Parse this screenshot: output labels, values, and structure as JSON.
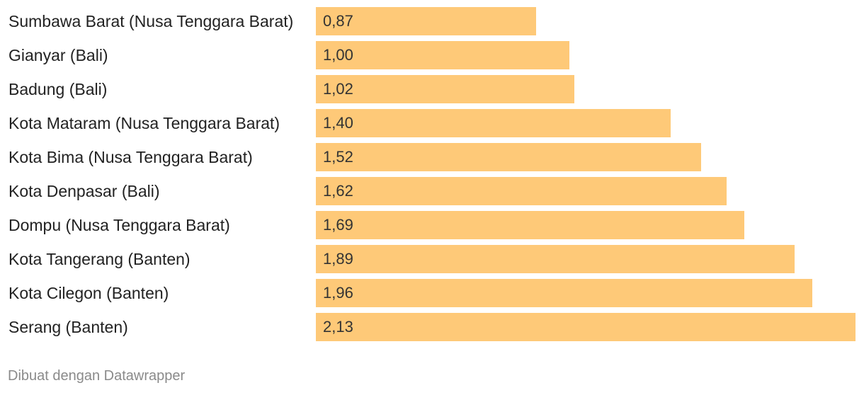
{
  "chart_data": {
    "type": "bar",
    "orientation": "horizontal",
    "categories": [
      "Sumbawa Barat (Nusa Tenggara Barat)",
      "Gianyar (Bali)",
      "Badung (Bali)",
      "Kota Mataram (Nusa Tenggara Barat)",
      "Kota Bima (Nusa Tenggara Barat)",
      "Kota Denpasar (Bali)",
      "Dompu (Nusa Tenggara Barat)",
      "Kota Tangerang (Banten)",
      "Kota Cilegon (Banten)",
      "Serang (Banten)"
    ],
    "values": [
      0.87,
      1.0,
      1.02,
      1.4,
      1.52,
      1.62,
      1.69,
      1.89,
      1.96,
      2.13
    ],
    "value_labels": [
      "0,87",
      "1,00",
      "1,02",
      "1,40",
      "1,52",
      "1,62",
      "1,69",
      "1,89",
      "1,96",
      "2,13"
    ],
    "xlim": [
      0,
      2.13
    ],
    "bar_color": "#fec978",
    "grid": false,
    "legend": "none"
  },
  "footer": {
    "credit": "Dibuat dengan Datawrapper"
  }
}
